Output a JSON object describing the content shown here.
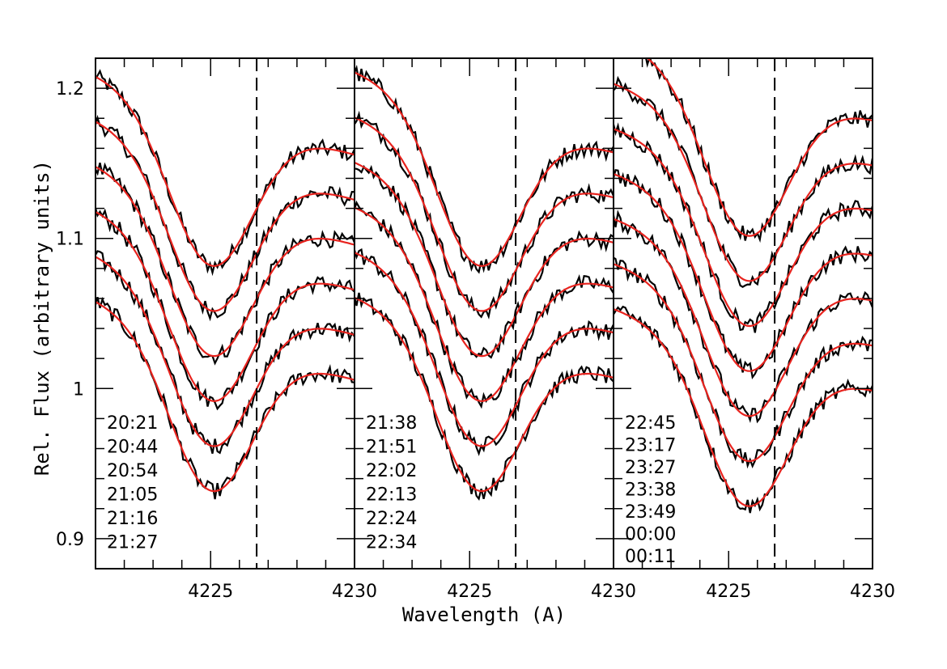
{
  "chart_data": {
    "type": "line",
    "xlabel": "Wavelength (A)",
    "ylabel": "Rel. Flux (arbitrary units)",
    "ylim": [
      0.88,
      1.22
    ],
    "y_ticks": [
      {
        "value": 0.9,
        "label": "0.9"
      },
      {
        "value": 1.0,
        "label": "1"
      },
      {
        "value": 1.1,
        "label": "1.1"
      },
      {
        "value": 1.2,
        "label": "1.2"
      }
    ],
    "line_colors": {
      "observed": "#000000",
      "model": "#e8231e",
      "frame": "#000000"
    },
    "panels": [
      {
        "xlim": [
          4221.0,
          4230.0
        ],
        "x_ticks": [
          {
            "value": 4225,
            "label": "4225"
          },
          {
            "value": 4230,
            "label": "4230"
          }
        ],
        "reference_line": 4226.6,
        "min_wavelength": 4225.0,
        "series": [
          {
            "time": "20:21",
            "continuum": 1.19,
            "depth": 0.104
          },
          {
            "time": "20:44",
            "continuum": 1.16,
            "depth": 0.104
          },
          {
            "time": "20:54",
            "continuum": 1.13,
            "depth": 0.104
          },
          {
            "time": "21:05",
            "continuum": 1.1,
            "depth": 0.104
          },
          {
            "time": "21:16",
            "continuum": 1.07,
            "depth": 0.104
          },
          {
            "time": "21:27",
            "continuum": 1.04,
            "depth": 0.104
          }
        ]
      },
      {
        "xlim": [
          4221.0,
          4230.0
        ],
        "x_ticks": [
          {
            "value": 4225,
            "label": "4225"
          },
          {
            "value": 4230,
            "label": "4230"
          }
        ],
        "reference_line": 4226.6,
        "min_wavelength": 4225.3,
        "series": [
          {
            "time": "21:38",
            "continuum": 1.19,
            "depth": 0.104
          },
          {
            "time": "21:51",
            "continuum": 1.16,
            "depth": 0.104
          },
          {
            "time": "22:02",
            "continuum": 1.13,
            "depth": 0.104
          },
          {
            "time": "22:13",
            "continuum": 1.1,
            "depth": 0.104
          },
          {
            "time": "22:24",
            "continuum": 1.07,
            "depth": 0.104
          },
          {
            "time": "22:34",
            "continuum": 1.04,
            "depth": 0.104
          }
        ]
      },
      {
        "xlim": [
          4221.0,
          4230.0
        ],
        "x_ticks": [
          {
            "value": 4225,
            "label": "4225"
          },
          {
            "value": 4230,
            "label": "4230"
          }
        ],
        "reference_line": 4226.6,
        "min_wavelength": 4225.6,
        "series": [
          {
            "time": "22:45",
            "continuum": 1.21,
            "depth": 0.104
          },
          {
            "time": "23:17",
            "continuum": 1.18,
            "depth": 0.104
          },
          {
            "time": "23:27",
            "continuum": 1.15,
            "depth": 0.104
          },
          {
            "time": "23:38",
            "continuum": 1.12,
            "depth": 0.104
          },
          {
            "time": "23:49",
            "continuum": 1.09,
            "depth": 0.104
          },
          {
            "time": "00:00",
            "continuum": 1.06,
            "depth": 0.104
          },
          {
            "time": "00:11",
            "continuum": 1.03,
            "depth": 0.104
          }
        ]
      }
    ]
  }
}
